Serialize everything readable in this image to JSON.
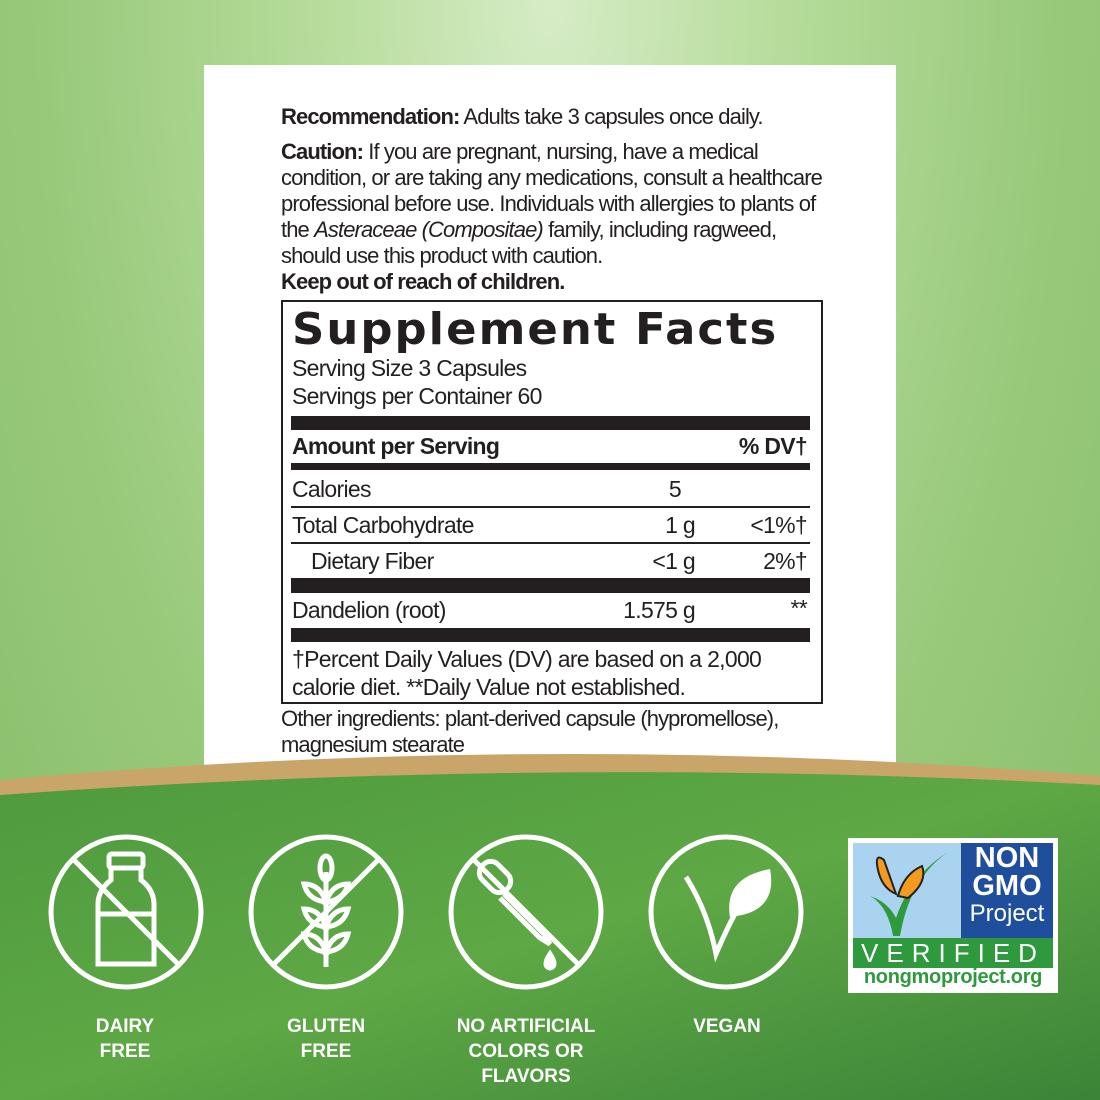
{
  "label": {
    "recommendation_label": "Recommendation:",
    "recommendation_text": " Adults take 3 capsules once daily.",
    "caution_label": "Caution:",
    "caution_text_1": " If you are pregnant, nursing, have a medical condition, or are taking any medications, consult a healthcare professional before use. Individuals with allergies to plants of the ",
    "caution_italic": "Asteraceae (Compositae)",
    "caution_text_2": " family, including ragweed, should use this product with caution.",
    "keep_out": "Keep out of reach of children."
  },
  "facts": {
    "title": "Supplement Facts",
    "serving_size": "Serving Size 3 Capsules",
    "servings_per_container": "Servings per Container 60",
    "header_amount": "Amount per Serving",
    "header_dv": "% DV†",
    "rows": [
      {
        "name": "Calories",
        "amount": "5",
        "dv": ""
      },
      {
        "name": "Total Carbohydrate",
        "amount": "1 g",
        "dv": "<1%†"
      },
      {
        "name": "Dietary Fiber",
        "amount": "<1 g",
        "dv": "2%†"
      },
      {
        "name": "Dandelion (root)",
        "amount": "1.575 g",
        "dv": "**"
      }
    ],
    "footnote_1": "†Percent Daily Values (DV) are based on a 2,000",
    "footnote_2": "calorie diet. **Daily Value not established."
  },
  "other_ingredients_1": "Other ingredients: plant-derived capsule (hypromellose),",
  "other_ingredients_2": "magnesium stearate",
  "badges": [
    {
      "icon": "dairy-free-bottle-icon",
      "line1": "DAIRY",
      "line2": "FREE",
      "line3": ""
    },
    {
      "icon": "gluten-free-wheat-icon",
      "line1": "GLUTEN",
      "line2": "FREE",
      "line3": ""
    },
    {
      "icon": "no-artificial-dropper-icon",
      "line1": "NO ARTIFICIAL",
      "line2": "COLORS OR",
      "line3": "FLAVORS"
    },
    {
      "icon": "vegan-leaf-icon",
      "line1": "VEGAN",
      "line2": "",
      "line3": ""
    }
  ],
  "nongmo": {
    "line1": "NON",
    "line2": "GMO",
    "line3": "Project",
    "verified": "VERIFIED",
    "url": "nongmoproject.org"
  },
  "colors": {
    "dark_green": "#3f8a3c",
    "light_green": "#98c97a",
    "gold": "#c9a56a",
    "ink": "#231f20"
  }
}
